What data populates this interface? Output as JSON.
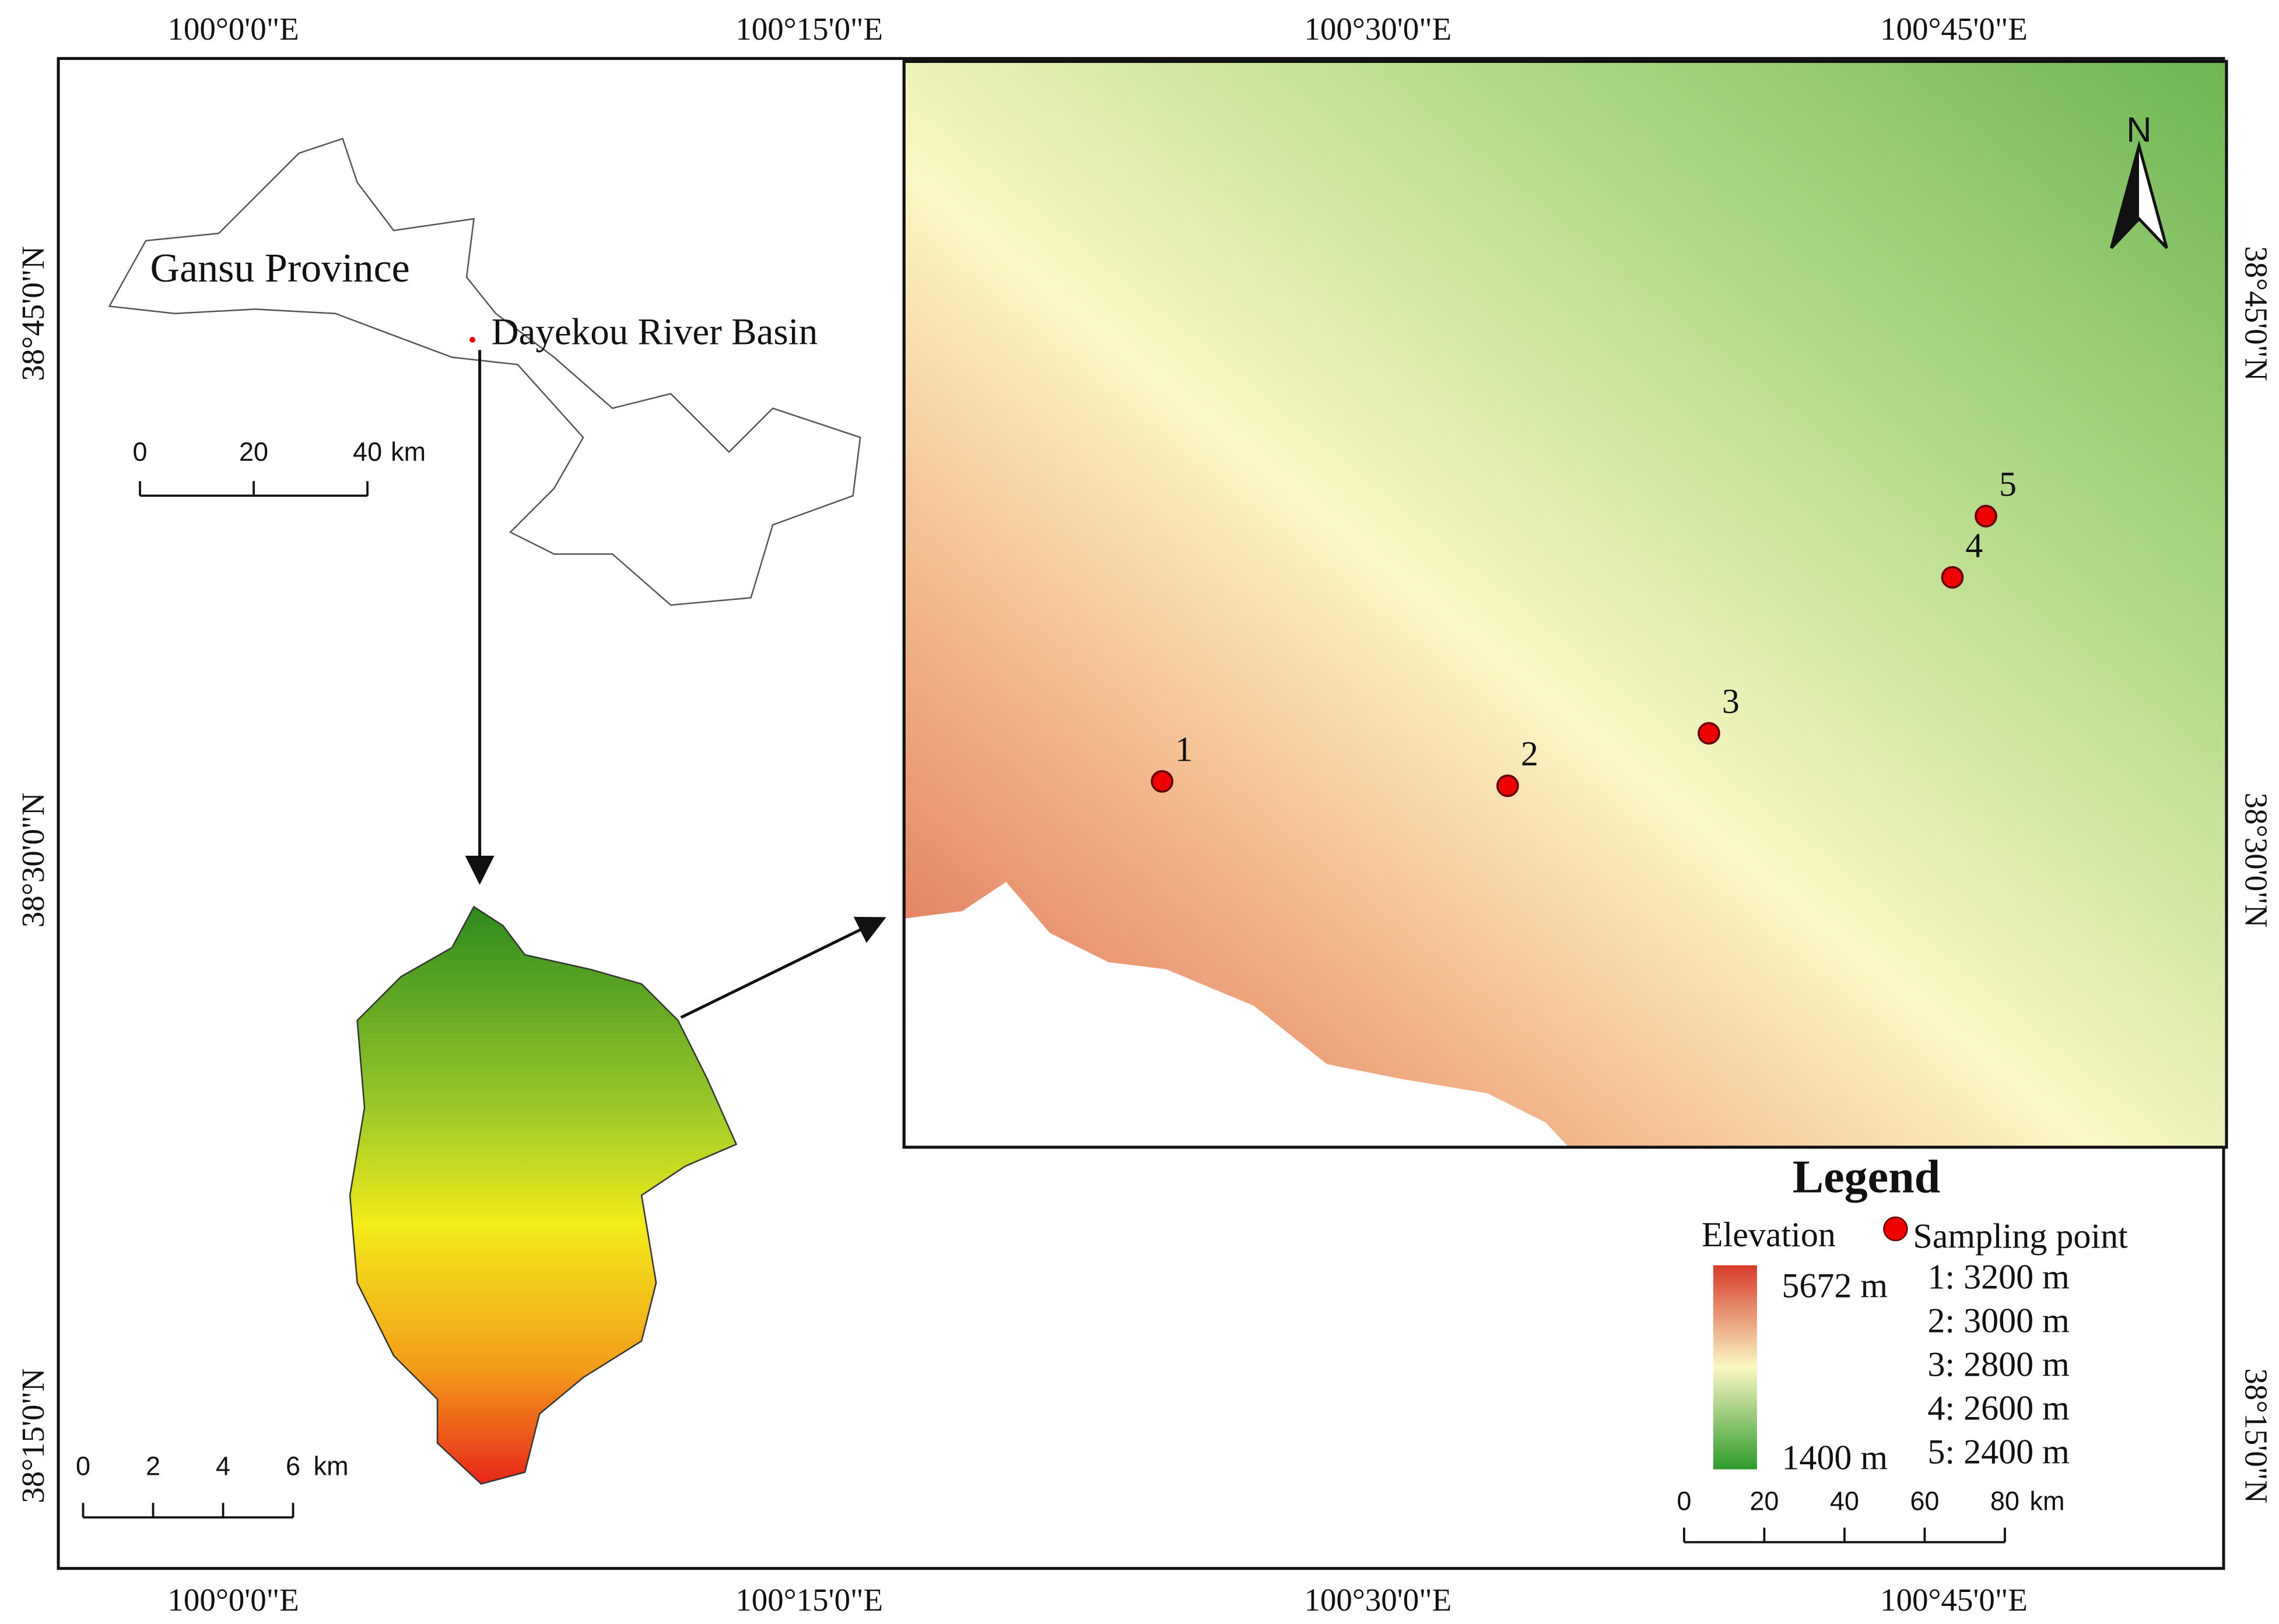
{
  "axes": {
    "top_labels": [
      "100°0'0\"E",
      "100°15'0\"E",
      "100°30'0\"E",
      "100°45'0\"E"
    ],
    "bottom_labels": [
      "100°0'0\"E",
      "100°15'0\"E",
      "100°30'0\"E",
      "100°45'0\"E"
    ],
    "left_labels": [
      "38°45'0\"N",
      "38°30'0\"N",
      "38°15'0\"N"
    ],
    "right_labels": [
      "38°45'0\"N",
      "38°30'0\"N",
      "38°15'0\"N"
    ]
  },
  "overview": {
    "province": "Gansu Province",
    "basin": "Dayekou River Basin",
    "scale_ticks": [
      "0",
      "20",
      "40"
    ],
    "scale_unit": "km"
  },
  "basin_map": {
    "scale_ticks": [
      "0",
      "2",
      "4",
      "6"
    ],
    "scale_unit": "km"
  },
  "main_map": {
    "north": "N",
    "points": [
      "1",
      "2",
      "3",
      "4",
      "5"
    ]
  },
  "legend": {
    "title": "Legend",
    "elevation_title": "Elevation",
    "max": "5672 m",
    "min": "1400 m",
    "point_title": "Sampling point",
    "entries": [
      "1: 3200 m",
      "2: 3000 m",
      "3: 2800 m",
      "4: 2600 m",
      "5: 2400 m"
    ],
    "scale_ticks": [
      "0",
      "20",
      "40",
      "60",
      "80"
    ],
    "scale_unit": "km"
  }
}
